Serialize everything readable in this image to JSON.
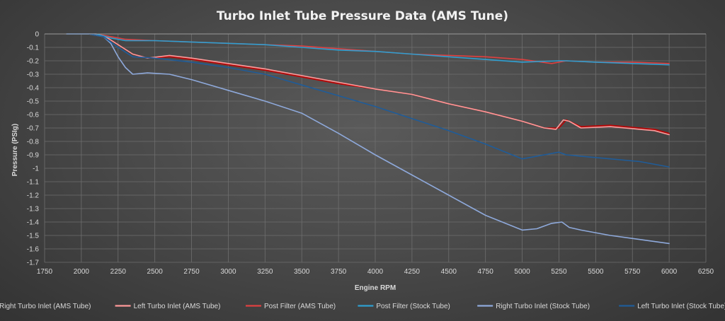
{
  "chart_data": {
    "type": "line",
    "title": "Turbo Inlet Tube Pressure Data (AMS Tune)",
    "xlabel": "Engine RPM",
    "ylabel": "Pressure (PSIg)",
    "xlim": [
      1750,
      6250
    ],
    "ylim": [
      -1.7,
      0
    ],
    "xticks": [
      1750,
      2000,
      2250,
      2500,
      2750,
      3000,
      3250,
      3500,
      3750,
      4000,
      4250,
      4500,
      4750,
      5000,
      5250,
      5500,
      5750,
      6000,
      6250
    ],
    "ytick_labels": [
      "0",
      "-0.1",
      "-0.2",
      "-0.3",
      "-0.4",
      "-0.5",
      "-0.6",
      "-0.7",
      "-0.8",
      "-0.9",
      "-1",
      "-1.1",
      "-1.2",
      "-1.3",
      "-1.4",
      "-1.5",
      "-1.6",
      "-1.7"
    ],
    "grid": true,
    "legend_position": "bottom",
    "series": [
      {
        "name": "Right Turbo Inlet (AMS Tube)",
        "color": "#c00000",
        "x": [
          1900,
          2050,
          2150,
          2250,
          2350,
          2450,
          2600,
          2750,
          3000,
          3250,
          3500,
          3750,
          4000,
          4250,
          4500,
          4750,
          5000,
          5150,
          5250,
          5300,
          5400,
          5600,
          5800,
          5900,
          6000
        ],
        "y": [
          0,
          0,
          -0.01,
          -0.08,
          -0.15,
          -0.18,
          -0.17,
          -0.19,
          -0.23,
          -0.27,
          -0.32,
          -0.37,
          -0.41,
          -0.45,
          -0.52,
          -0.58,
          -0.65,
          -0.7,
          -0.7,
          -0.64,
          -0.69,
          -0.68,
          -0.7,
          -0.71,
          -0.74
        ]
      },
      {
        "name": "Left Turbo Inlet (AMS Tube)",
        "color": "#ff9999",
        "x": [
          1900,
          2050,
          2150,
          2250,
          2350,
          2450,
          2600,
          2750,
          3000,
          3250,
          3500,
          3750,
          4000,
          4250,
          4500,
          4750,
          5000,
          5150,
          5230,
          5280,
          5320,
          5400,
          5600,
          5800,
          5900,
          6000
        ],
        "y": [
          0,
          0,
          -0.01,
          -0.08,
          -0.15,
          -0.18,
          -0.16,
          -0.18,
          -0.22,
          -0.26,
          -0.31,
          -0.36,
          -0.41,
          -0.45,
          -0.52,
          -0.58,
          -0.65,
          -0.7,
          -0.71,
          -0.64,
          -0.65,
          -0.7,
          -0.69,
          -0.71,
          -0.72,
          -0.75
        ]
      },
      {
        "name": "Post Filter (AMS Tube)",
        "color": "#e04040",
        "x": [
          1900,
          2100,
          2200,
          2300,
          2500,
          2750,
          3000,
          3250,
          3500,
          3750,
          4000,
          4250,
          4500,
          4750,
          5000,
          5200,
          5300,
          5500,
          5750,
          6000
        ],
        "y": [
          0,
          0,
          -0.02,
          -0.04,
          -0.05,
          -0.06,
          -0.07,
          -0.08,
          -0.09,
          -0.11,
          -0.13,
          -0.15,
          -0.16,
          -0.17,
          -0.19,
          -0.22,
          -0.2,
          -0.21,
          -0.21,
          -0.22
        ]
      },
      {
        "name": "Post Filter (Stock Tube)",
        "color": "#2e9fd1",
        "x": [
          1900,
          2100,
          2200,
          2300,
          2500,
          2750,
          3000,
          3250,
          3500,
          3750,
          4000,
          4250,
          4500,
          4750,
          5000,
          5250,
          5300,
          5500,
          5750,
          6000
        ],
        "y": [
          0,
          0,
          -0.03,
          -0.05,
          -0.05,
          -0.06,
          -0.07,
          -0.08,
          -0.1,
          -0.12,
          -0.13,
          -0.15,
          -0.17,
          -0.19,
          -0.21,
          -0.2,
          -0.2,
          -0.21,
          -0.22,
          -0.23
        ]
      },
      {
        "name": "Right Turbo Inlet (Stock Tube)",
        "color": "#8ea9db",
        "x": [
          1900,
          2050,
          2150,
          2200,
          2250,
          2300,
          2350,
          2450,
          2600,
          2750,
          3000,
          3250,
          3500,
          3750,
          4000,
          4250,
          4500,
          4750,
          5000,
          5100,
          5200,
          5270,
          5320,
          5400,
          5600,
          5800,
          6000
        ],
        "y": [
          0,
          0,
          -0.02,
          -0.07,
          -0.17,
          -0.25,
          -0.3,
          -0.29,
          -0.3,
          -0.34,
          -0.42,
          -0.5,
          -0.59,
          -0.74,
          -0.9,
          -1.05,
          -1.2,
          -1.35,
          -1.46,
          -1.45,
          -1.41,
          -1.4,
          -1.44,
          -1.46,
          -1.5,
          -1.53,
          -1.56
        ]
      },
      {
        "name": "Left Turbo Inlet (Stock Tube)",
        "color": "#1f5c99",
        "x": [
          1900,
          2050,
          2150,
          2250,
          2350,
          2500,
          2750,
          3000,
          3250,
          3500,
          3750,
          4000,
          4250,
          4500,
          4750,
          5000,
          5150,
          5250,
          5300,
          5400,
          5600,
          5800,
          6000
        ],
        "y": [
          0,
          0,
          -0.02,
          -0.1,
          -0.17,
          -0.18,
          -0.21,
          -0.25,
          -0.3,
          -0.38,
          -0.46,
          -0.54,
          -0.63,
          -0.72,
          -0.82,
          -0.93,
          -0.9,
          -0.88,
          -0.9,
          -0.91,
          -0.93,
          -0.95,
          -0.99
        ]
      }
    ]
  }
}
